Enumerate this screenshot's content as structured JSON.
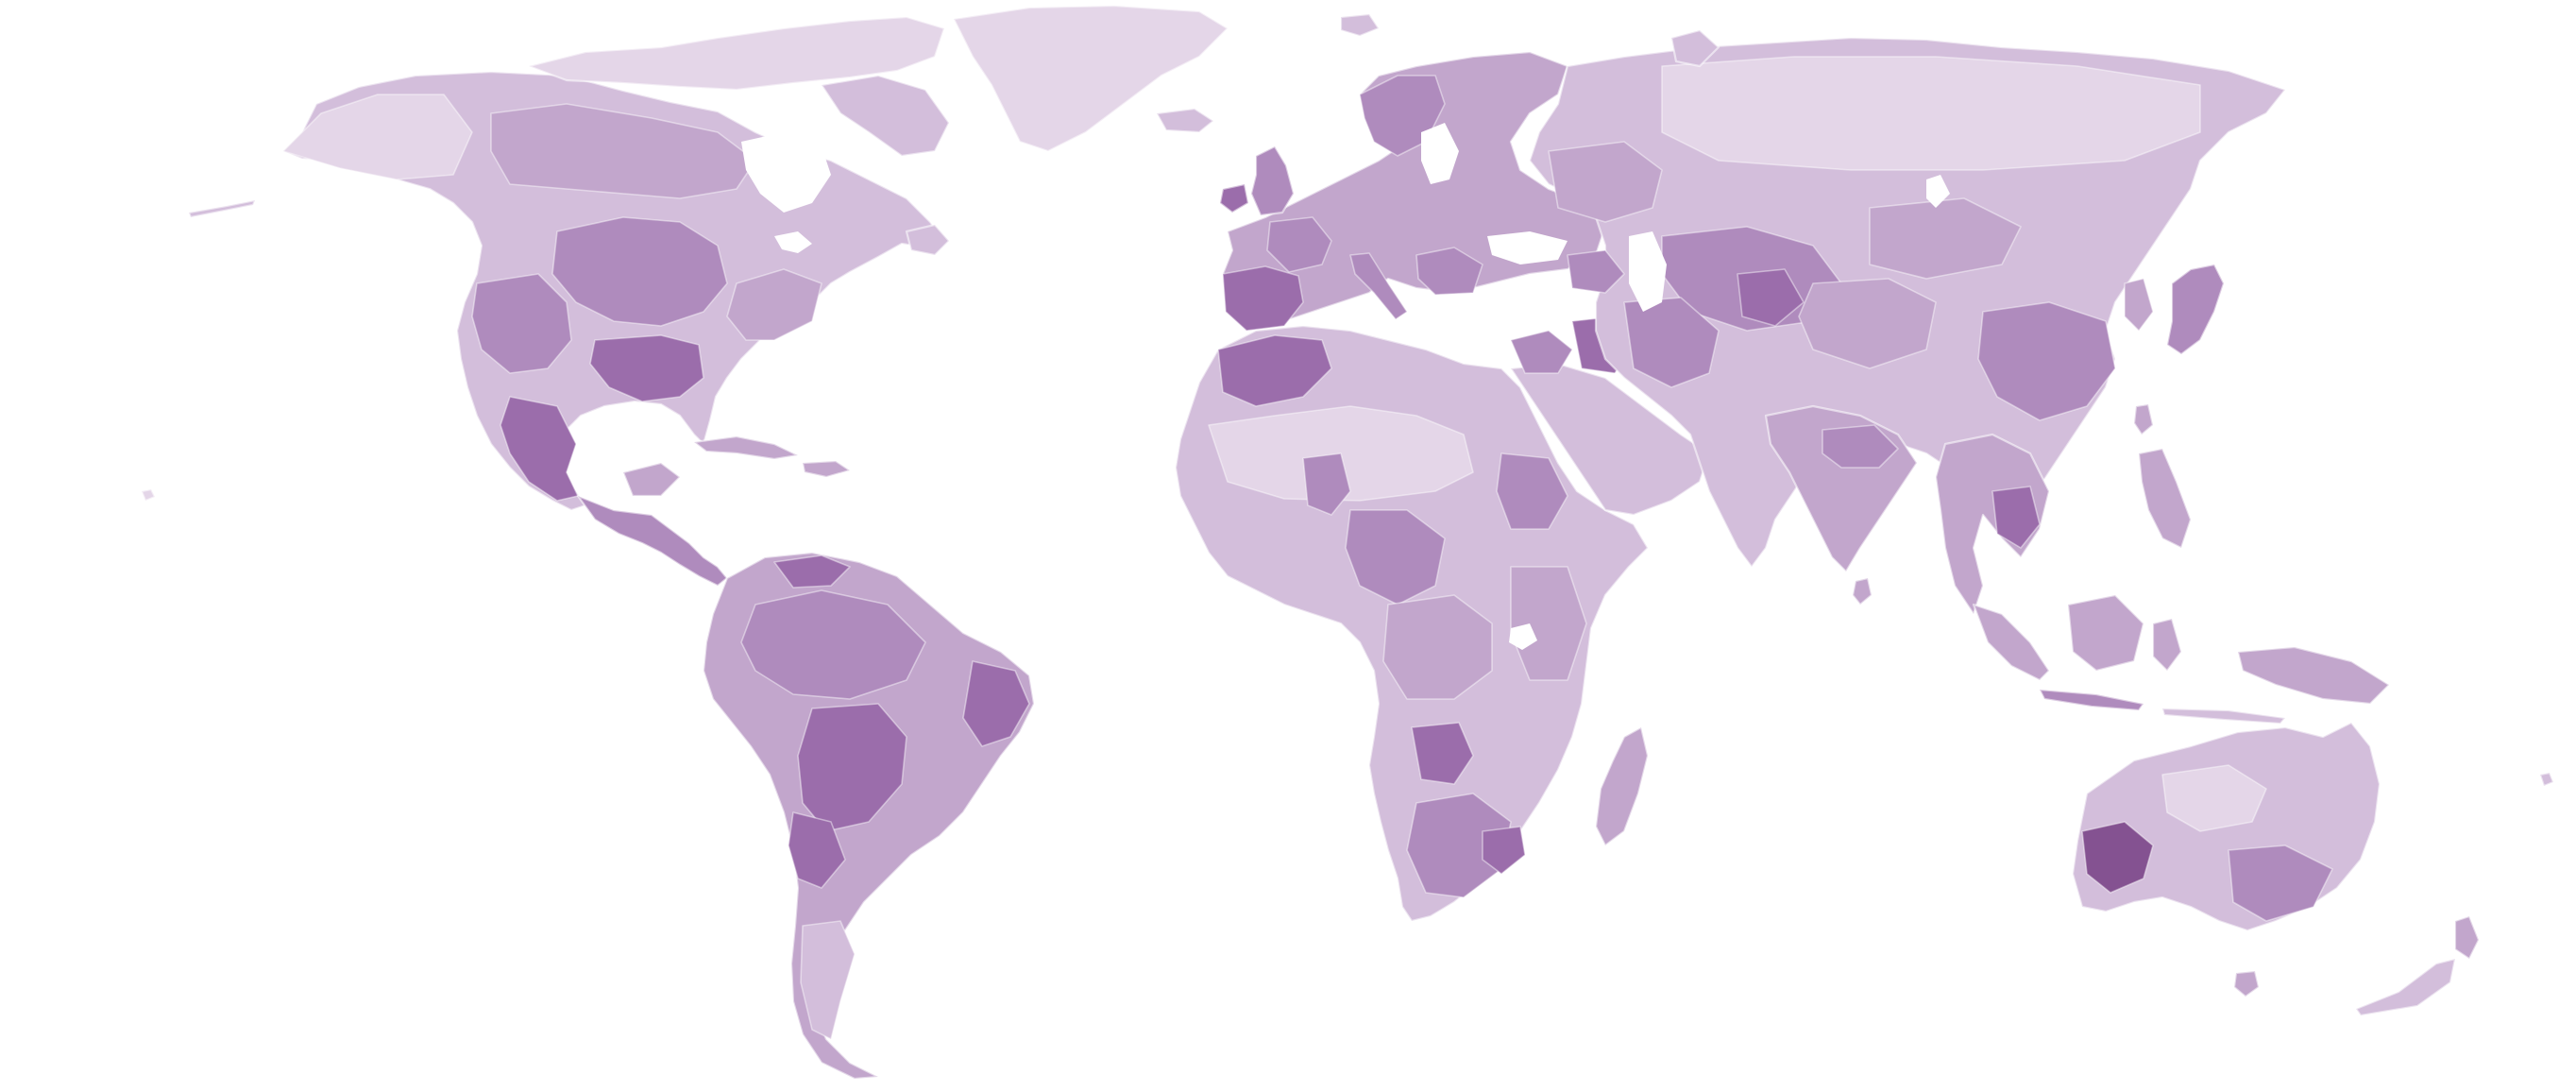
{
  "map": {
    "type": "choropleth-world-map",
    "projection": "equirectangular-like",
    "legend": "none",
    "title": "",
    "colors": {
      "background": "#ffffff",
      "level_1": "#e4d6e8",
      "level_2": "#d3bedb",
      "level_3": "#c2a6cc",
      "level_4": "#af8bbd",
      "level_5": "#9b6dab",
      "level_6": "#845291",
      "boundary": "#ffffff"
    }
  },
  "landmasses": [
    {
      "name": "north-america",
      "level": 2
    },
    {
      "name": "greenland",
      "level": 1
    },
    {
      "name": "central-america",
      "level": 4
    },
    {
      "name": "south-america",
      "level": 3
    },
    {
      "name": "europe",
      "level": 3
    },
    {
      "name": "africa",
      "level": 2
    },
    {
      "name": "madagascar",
      "level": 3
    },
    {
      "name": "arabia",
      "level": 2
    },
    {
      "name": "asia",
      "level": 2
    },
    {
      "name": "india",
      "level": 3
    },
    {
      "name": "southeast-asia",
      "level": 3
    },
    {
      "name": "indonesia",
      "level": 3
    },
    {
      "name": "japan",
      "level": 4
    },
    {
      "name": "australia",
      "level": 2
    },
    {
      "name": "new-zealand",
      "level": 3
    },
    {
      "name": "uk-ireland",
      "level": 4
    },
    {
      "name": "arctic-islands",
      "level": 1
    },
    {
      "name": "iceland",
      "level": 2
    },
    {
      "name": "caribbean",
      "level": 3
    },
    {
      "name": "sri-lanka",
      "level": 3
    },
    {
      "name": "taiwan",
      "level": 3
    },
    {
      "name": "philippines",
      "level": 3
    },
    {
      "name": "new-guinea",
      "level": 3
    }
  ]
}
